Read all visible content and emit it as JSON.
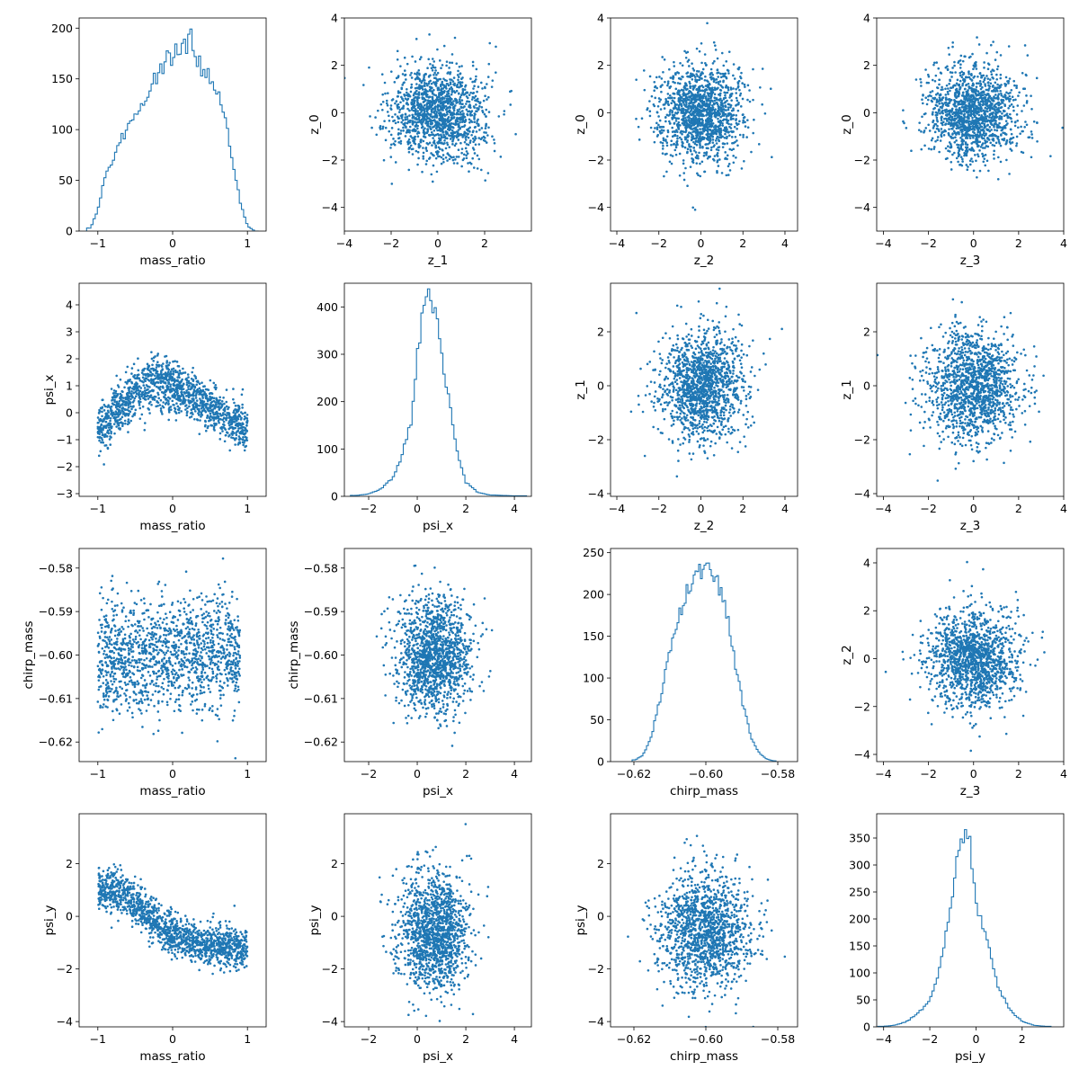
{
  "chart_data": {
    "type": "scatter",
    "layout": "4x4 corner/pair plot",
    "color": "#1f77b4",
    "grid": false,
    "panels": [
      {
        "kind": "histogram",
        "xlabel": "mass_ratio",
        "ylabel": "",
        "xlim": [
          -1.25,
          1.25
        ],
        "ylim": [
          0,
          210
        ],
        "xticks": [
          -1,
          0,
          1
        ],
        "xtick_labels": [
          "−1",
          "0",
          "1"
        ],
        "yticks": [
          0,
          50,
          100,
          150,
          200
        ],
        "ytick_labels": [
          "0",
          "50",
          "100",
          "150",
          "200"
        ],
        "histogram": {
          "x": [
            -1.1,
            -1.0,
            -0.9,
            -0.8,
            -0.7,
            -0.6,
            -0.5,
            -0.4,
            -0.3,
            -0.2,
            -0.1,
            0.0,
            0.1,
            0.2,
            0.25,
            0.3,
            0.4,
            0.5,
            0.6,
            0.7,
            0.8,
            0.9,
            1.0,
            1.1
          ],
          "y": [
            3,
            20,
            55,
            70,
            90,
            100,
            115,
            125,
            140,
            155,
            165,
            175,
            180,
            185,
            200,
            175,
            160,
            150,
            135,
            110,
            70,
            30,
            5,
            0
          ]
        }
      },
      {
        "kind": "scatter",
        "xlabel": "z_1",
        "ylabel": "z_0",
        "xlim": [
          -4,
          4
        ],
        "ylim": [
          -5,
          4
        ],
        "xticks": [
          -4,
          -2,
          0,
          2
        ],
        "xtick_labels": [
          "−4",
          "−2",
          "0",
          "2"
        ],
        "yticks": [
          -4,
          -2,
          0,
          2,
          4
        ],
        "ytick_labels": [
          "−4",
          "−2",
          "0",
          "2",
          "4"
        ],
        "distribution": {
          "shape": "isotropic gaussian",
          "x_mean": 0,
          "x_sd": 1,
          "y_mean": 0,
          "y_sd": 1
        }
      },
      {
        "kind": "scatter",
        "xlabel": "z_2",
        "ylabel": "z_0",
        "xlim": [
          -4.3,
          4.6
        ],
        "ylim": [
          -5,
          4
        ],
        "xticks": [
          -4,
          -2,
          0,
          2,
          4
        ],
        "xtick_labels": [
          "−4",
          "−2",
          "0",
          "2",
          "4"
        ],
        "yticks": [
          -4,
          -2,
          0,
          2,
          4
        ],
        "ytick_labels": [
          "−4",
          "−2",
          "0",
          "2",
          "4"
        ],
        "distribution": {
          "shape": "isotropic gaussian",
          "x_mean": 0,
          "x_sd": 1,
          "y_mean": 0,
          "y_sd": 1
        }
      },
      {
        "kind": "scatter",
        "xlabel": "z_3",
        "ylabel": "z_0",
        "xlim": [
          -4.3,
          4.0
        ],
        "ylim": [
          -5,
          4
        ],
        "xticks": [
          -4,
          -2,
          0,
          2,
          4
        ],
        "xtick_labels": [
          "−4",
          "−2",
          "0",
          "2",
          "4"
        ],
        "yticks": [
          -4,
          -2,
          0,
          2,
          4
        ],
        "ytick_labels": [
          "−4",
          "−2",
          "0",
          "2",
          "4"
        ],
        "distribution": {
          "shape": "isotropic gaussian",
          "x_mean": 0,
          "x_sd": 1,
          "y_mean": 0,
          "y_sd": 1
        }
      },
      {
        "kind": "scatter",
        "xlabel": "mass_ratio",
        "ylabel": "psi_x",
        "xlim": [
          -1.25,
          1.25
        ],
        "ylim": [
          -3.1,
          4.8
        ],
        "xticks": [
          -1,
          0,
          1
        ],
        "xtick_labels": [
          "−1",
          "0",
          "1"
        ],
        "yticks": [
          -3,
          -2,
          -1,
          0,
          1,
          2,
          3,
          4
        ],
        "ytick_labels": [
          "−3",
          "−2",
          "−1",
          "0",
          "1",
          "2",
          "3",
          "4"
        ],
        "distribution": {
          "shape": "arch: psi_x peaks near mass_ratio -0.2 and falls toward both ends",
          "x_range": [
            -1.0,
            1.0
          ],
          "curve": {
            "x": [
              -1.0,
              -0.5,
              -0.2,
              0.0,
              0.5,
              1.0
            ],
            "y": [
              -0.7,
              0.8,
              1.2,
              1.0,
              0.2,
              -0.6
            ]
          },
          "y_sd": 0.45
        }
      },
      {
        "kind": "histogram",
        "xlabel": "psi_x",
        "ylabel": "",
        "xlim": [
          -3.0,
          4.7
        ],
        "ylim": [
          0,
          450
        ],
        "xticks": [
          -2,
          0,
          2,
          4
        ],
        "xtick_labels": [
          "−2",
          "0",
          "2",
          "4"
        ],
        "yticks": [
          0,
          100,
          200,
          300,
          400
        ],
        "ytick_labels": [
          "0",
          "100",
          "200",
          "300",
          "400"
        ],
        "histogram": {
          "x": [
            -2.5,
            -2.0,
            -1.5,
            -1.0,
            -0.75,
            -0.5,
            -0.25,
            0.0,
            0.15,
            0.3,
            0.5,
            0.75,
            1.0,
            1.25,
            1.5,
            1.75,
            2.0,
            2.5,
            3.0,
            4.0
          ],
          "y": [
            2,
            5,
            15,
            40,
            70,
            110,
            160,
            300,
            340,
            430,
            420,
            380,
            300,
            220,
            140,
            70,
            30,
            8,
            3,
            1
          ]
        }
      },
      {
        "kind": "scatter",
        "xlabel": "z_2",
        "ylabel": "z_1",
        "xlim": [
          -4.3,
          4.6
        ],
        "ylim": [
          -4.1,
          3.8
        ],
        "xticks": [
          -4,
          -2,
          0,
          2,
          4
        ],
        "xtick_labels": [
          "−4",
          "−2",
          "0",
          "2",
          "4"
        ],
        "yticks": [
          -4,
          -2,
          0,
          2
        ],
        "ytick_labels": [
          "−4",
          "−2",
          "0",
          "2"
        ],
        "distribution": {
          "shape": "isotropic gaussian",
          "x_mean": 0,
          "x_sd": 1,
          "y_mean": 0,
          "y_sd": 1
        }
      },
      {
        "kind": "scatter",
        "xlabel": "z_3",
        "ylabel": "z_1",
        "xlim": [
          -4.3,
          4.0
        ],
        "ylim": [
          -4.1,
          3.8
        ],
        "xticks": [
          -4,
          -2,
          0,
          2,
          4
        ],
        "xtick_labels": [
          "−4",
          "−2",
          "0",
          "2",
          "4"
        ],
        "yticks": [
          -4,
          -2,
          0,
          2
        ],
        "ytick_labels": [
          "−4",
          "−2",
          "0",
          "2"
        ],
        "distribution": {
          "shape": "isotropic gaussian",
          "x_mean": 0,
          "x_sd": 1,
          "y_mean": 0,
          "y_sd": 1
        }
      },
      {
        "kind": "scatter",
        "xlabel": "mass_ratio",
        "ylabel": "chirp_mass",
        "xlim": [
          -1.25,
          1.25
        ],
        "ylim": [
          -0.6245,
          -0.5755
        ],
        "xticks": [
          -1,
          0,
          1
        ],
        "xtick_labels": [
          "−1",
          "0",
          "1"
        ],
        "yticks": [
          -0.62,
          -0.61,
          -0.6,
          -0.59,
          -0.58
        ],
        "ytick_labels": [
          "−0.62",
          "−0.61",
          "−0.60",
          "−0.59",
          "−0.58"
        ],
        "distribution": {
          "shape": "broad blob, weak positive trend",
          "x_range": [
            -1.0,
            0.9
          ],
          "y_mean": -0.6,
          "y_sd": 0.0065
        }
      },
      {
        "kind": "scatter",
        "xlabel": "psi_x",
        "ylabel": "chirp_mass",
        "xlim": [
          -3.0,
          4.7
        ],
        "ylim": [
          -0.6245,
          -0.5755
        ],
        "xticks": [
          -2,
          0,
          2,
          4
        ],
        "xtick_labels": [
          "−2",
          "0",
          "2",
          "4"
        ],
        "yticks": [
          -0.62,
          -0.61,
          -0.6,
          -0.59,
          -0.58
        ],
        "ytick_labels": [
          "−0.62",
          "−0.61",
          "−0.60",
          "−0.59",
          "−0.58"
        ],
        "distribution": {
          "shape": "elongated blob, negative trend",
          "x_mean": 0.7,
          "x_sd": 0.75,
          "y_mean": -0.6,
          "y_sd": 0.0065
        }
      },
      {
        "kind": "histogram",
        "xlabel": "chirp_mass",
        "ylabel": "",
        "xlim": [
          -0.6265,
          -0.5745
        ],
        "ylim": [
          0,
          255
        ],
        "xticks": [
          -0.62,
          -0.6,
          -0.58
        ],
        "xtick_labels": [
          "−0.62",
          "−0.60",
          "−0.58"
        ],
        "yticks": [
          0,
          50,
          100,
          150,
          200,
          250
        ],
        "ytick_labels": [
          "0",
          "50",
          "100",
          "150",
          "200",
          "250"
        ],
        "histogram": {
          "x": [
            -0.6195,
            -0.6175,
            -0.6155,
            -0.6135,
            -0.6115,
            -0.6095,
            -0.6075,
            -0.6055,
            -0.6035,
            -0.6015,
            -0.5995,
            -0.5975,
            -0.5955,
            -0.5935,
            -0.5915,
            -0.5895,
            -0.5875,
            -0.5855,
            -0.5835,
            -0.5815
          ],
          "y": [
            2,
            8,
            25,
            60,
            100,
            140,
            170,
            200,
            215,
            225,
            235,
            225,
            200,
            160,
            110,
            65,
            30,
            12,
            4,
            1
          ]
        }
      },
      {
        "kind": "scatter",
        "xlabel": "z_3",
        "ylabel": "z_2",
        "xlim": [
          -4.3,
          4.0
        ],
        "ylim": [
          -4.3,
          4.6
        ],
        "xticks": [
          -4,
          -2,
          0,
          2,
          4
        ],
        "xtick_labels": [
          "−4",
          "−2",
          "0",
          "2",
          "4"
        ],
        "yticks": [
          -4,
          -2,
          0,
          2,
          4
        ],
        "ytick_labels": [
          "−4",
          "−2",
          "0",
          "2",
          "4"
        ],
        "distribution": {
          "shape": "isotropic gaussian",
          "x_mean": 0,
          "x_sd": 1,
          "y_mean": 0,
          "y_sd": 1
        }
      },
      {
        "kind": "scatter",
        "xlabel": "mass_ratio",
        "ylabel": "psi_y",
        "xlim": [
          -1.25,
          1.25
        ],
        "ylim": [
          -4.2,
          3.9
        ],
        "xticks": [
          -1,
          0,
          1
        ],
        "xtick_labels": [
          "−1",
          "0",
          "1"
        ],
        "yticks": [
          -4,
          -2,
          0,
          2
        ],
        "ytick_labels": [
          "−4",
          "−2",
          "0",
          "2"
        ],
        "distribution": {
          "shape": "descending S: psi_y falls from ~1 to ~-1 as mass_ratio increases",
          "x_range": [
            -1.0,
            1.0
          ],
          "curve": {
            "x": [
              -1.0,
              -0.6,
              -0.3,
              0.0,
              0.4,
              1.0
            ],
            "y": [
              1.1,
              0.8,
              0.0,
              -0.7,
              -1.1,
              -1.2
            ]
          },
          "y_sd": 0.4
        }
      },
      {
        "kind": "scatter",
        "xlabel": "psi_x",
        "ylabel": "psi_y",
        "xlim": [
          -3.0,
          4.7
        ],
        "ylim": [
          -4.2,
          3.9
        ],
        "xticks": [
          -2,
          0,
          2,
          4
        ],
        "xtick_labels": [
          "−2",
          "0",
          "2",
          "4"
        ],
        "yticks": [
          -4,
          -2,
          0,
          2
        ],
        "ytick_labels": [
          "−4",
          "−2",
          "0",
          "2"
        ],
        "distribution": {
          "shape": "blob, slight positive trend",
          "x_mean": 0.7,
          "x_sd": 0.75,
          "y_mean": -0.6,
          "y_sd": 1.1
        }
      },
      {
        "kind": "scatter",
        "xlabel": "chirp_mass",
        "ylabel": "psi_y",
        "xlim": [
          -0.6265,
          -0.5745
        ],
        "ylim": [
          -4.2,
          3.9
        ],
        "xticks": [
          -0.62,
          -0.6,
          -0.58
        ],
        "xtick_labels": [
          "−0.62",
          "−0.60",
          "−0.58"
        ],
        "yticks": [
          -4,
          -2,
          0,
          2
        ],
        "ytick_labels": [
          "−4",
          "−2",
          "0",
          "2"
        ],
        "distribution": {
          "shape": "blob, negative trend",
          "x_mean": -0.6,
          "x_sd": 0.0065,
          "y_mean": -0.6,
          "y_sd": 1.1
        }
      },
      {
        "kind": "histogram",
        "xlabel": "psi_y",
        "ylabel": "",
        "xlim": [
          -4.3,
          3.8
        ],
        "ylim": [
          0,
          395
        ],
        "xticks": [
          -4,
          -2,
          0,
          2
        ],
        "xtick_labels": [
          "−4",
          "−2",
          "0",
          "2"
        ],
        "yticks": [
          0,
          50,
          100,
          150,
          200,
          250,
          300,
          350
        ],
        "ytick_labels": [
          "0",
          "50",
          "100",
          "150",
          "200",
          "250",
          "300",
          "350"
        ],
        "histogram": {
          "x": [
            -4.0,
            -3.5,
            -3.0,
            -2.5,
            -2.0,
            -1.75,
            -1.5,
            -1.25,
            -1.0,
            -0.75,
            -0.5,
            -0.25,
            0.0,
            0.25,
            0.5,
            0.75,
            1.0,
            1.5,
            2.0,
            2.5,
            3.0
          ],
          "y": [
            1,
            3,
            10,
            25,
            50,
            80,
            120,
            180,
            260,
            320,
            370,
            340,
            240,
            190,
            160,
            110,
            70,
            30,
            10,
            3,
            1
          ]
        }
      }
    ]
  }
}
